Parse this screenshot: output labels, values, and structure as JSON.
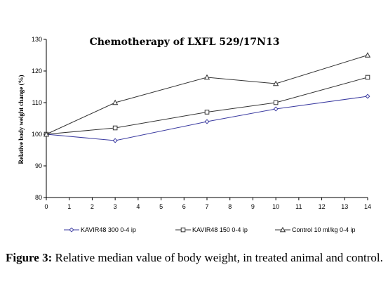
{
  "chart_data": {
    "type": "line",
    "title": "Chemotherapy of LXFL 529/17N13",
    "xlabel": "",
    "ylabel": "Relative body weight change (%)",
    "ylim": [
      80,
      130
    ],
    "yticks": [
      80,
      90,
      100,
      110,
      120,
      130
    ],
    "xlim": [
      0,
      14
    ],
    "xticks": [
      0,
      1,
      2,
      3,
      4,
      5,
      6,
      7,
      8,
      9,
      10,
      11,
      12,
      13,
      14
    ],
    "legend_position": "bottom",
    "grid": false,
    "series": [
      {
        "name": "KAVIR48 300 0-4 ip",
        "marker": "diamond",
        "color": "#3a3aa0",
        "x": [
          0,
          3,
          7,
          10,
          14
        ],
        "values": [
          100,
          98,
          104,
          108,
          112
        ]
      },
      {
        "name": "KAVIR48 150 0-4 ip",
        "marker": "square",
        "color": "#333333",
        "x": [
          0,
          3,
          7,
          10,
          14
        ],
        "values": [
          100,
          102,
          107,
          110,
          118
        ]
      },
      {
        "name": "Control 10 ml/kg 0-4 ip",
        "marker": "triangle",
        "color": "#333333",
        "x": [
          0,
          3,
          7,
          10,
          14
        ],
        "values": [
          100,
          110,
          118,
          116,
          125
        ]
      }
    ]
  },
  "caption": {
    "label": "Figure 3:",
    "text": " Relative median value of body weight, in treated animal and control."
  }
}
